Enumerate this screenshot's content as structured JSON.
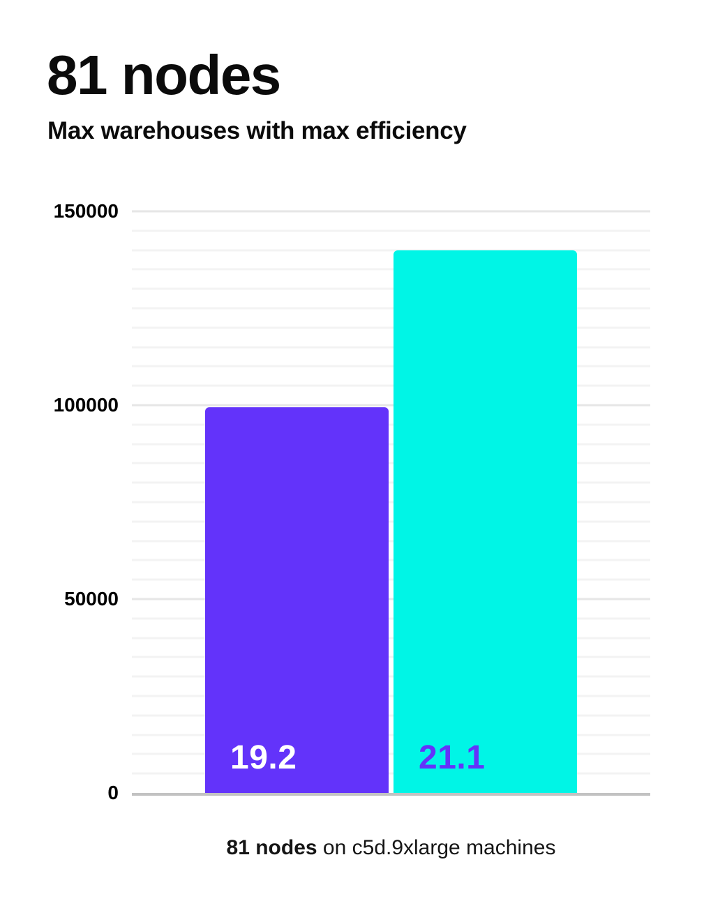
{
  "header": {
    "title": "81 nodes",
    "subtitle": "Max warehouses with max efficiency"
  },
  "caption": {
    "bold": "81 nodes",
    "rest": " on c5d.9xlarge machines"
  },
  "colors": {
    "background": "#ffffff",
    "text": "#0b0b0b",
    "axis_line": "#c2c2c2",
    "grid_minor": "#f3f3f3",
    "grid_major": "#e6e6e6",
    "bar_purple": "#6333fa",
    "bar_cyan": "#00f5e6",
    "bar_purple_label_text": "#ffffff",
    "bar_cyan_label_text": "#6333fa"
  },
  "chart_data": {
    "type": "bar",
    "title": "81 nodes",
    "subtitle": "Max warehouses with max efficiency",
    "caption": "81 nodes on c5d.9xlarge machines",
    "bars": [
      {
        "in_bar_label": "19.2",
        "value": 99500,
        "color": "#6333fa",
        "label_color": "#ffffff"
      },
      {
        "in_bar_label": "21.1",
        "value": 140000,
        "color": "#00f5e6",
        "label_color": "#6333fa"
      }
    ],
    "ylim": [
      0,
      150000
    ],
    "yticks": [
      0,
      50000,
      100000,
      150000
    ],
    "y_minor_step": 5000,
    "y_major_step": 50000,
    "grid": "horizontal",
    "legend": "none",
    "xlabel": "",
    "ylabel": ""
  }
}
